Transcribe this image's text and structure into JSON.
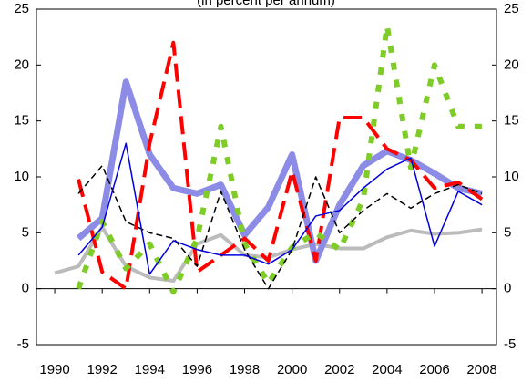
{
  "chart_data": {
    "type": "line",
    "subtitle": "(in percent per annum)",
    "x": [
      1990,
      1991,
      1992,
      1993,
      1994,
      1995,
      1996,
      1997,
      1998,
      1999,
      2000,
      2001,
      2002,
      2003,
      2004,
      2005,
      2006,
      2007,
      2008
    ],
    "xlim": [
      1989.23,
      2008.61
    ],
    "xticks": [
      1990,
      1992,
      1994,
      1996,
      1998,
      2000,
      2002,
      2004,
      2006,
      2008
    ],
    "ylim": [
      -5,
      25
    ],
    "yticks": [
      -5,
      0,
      5,
      10,
      15,
      20,
      25
    ],
    "series": [
      {
        "color": "#bbbbbb",
        "values": [
          1.4,
          2,
          5.5,
          2,
          1,
          0.7,
          4,
          4.8,
          3,
          2.8,
          3.5,
          4,
          3.6,
          3.6,
          4.6,
          5.2,
          4.9,
          5,
          5.3
        ]
      },
      {
        "color": "#8c8ce6",
        "values": [
          null,
          4.5,
          6.3,
          18.5,
          12,
          9,
          8.5,
          9.3,
          4.8,
          7.3,
          12,
          2.5,
          7.5,
          11,
          12.3,
          11.5,
          10.3,
          9,
          8.5
        ]
      },
      {
        "color": "#ff0000",
        "values": [
          null,
          9.8,
          1.5,
          0,
          13,
          22,
          1.5,
          3,
          4.5,
          2.5,
          10.5,
          2.5,
          15.3,
          15.3,
          12.5,
          11.5,
          9,
          9.5,
          8
        ]
      },
      {
        "color": "#7fcc28",
        "values": [
          null,
          0,
          6,
          1.8,
          4,
          -0.3,
          4.5,
          14.5,
          4,
          0.5,
          3.7,
          5,
          3.5,
          8,
          23.5,
          10.8,
          20,
          14.5,
          14.5
        ]
      },
      {
        "color": "#000000",
        "values": [
          null,
          8.5,
          11,
          6,
          5,
          4.5,
          2,
          8.7,
          3.5,
          0,
          3.5,
          10,
          5,
          7,
          8.5,
          7.2,
          8.5,
          9.3,
          8.5
        ]
      },
      {
        "color": "#0000dd",
        "values": [
          null,
          3,
          5.5,
          13,
          1.3,
          4.3,
          3.5,
          3,
          3,
          2.2,
          3.5,
          6.5,
          7,
          9,
          10.7,
          11.7,
          3.8,
          8.7,
          7.5
        ]
      }
    ]
  }
}
